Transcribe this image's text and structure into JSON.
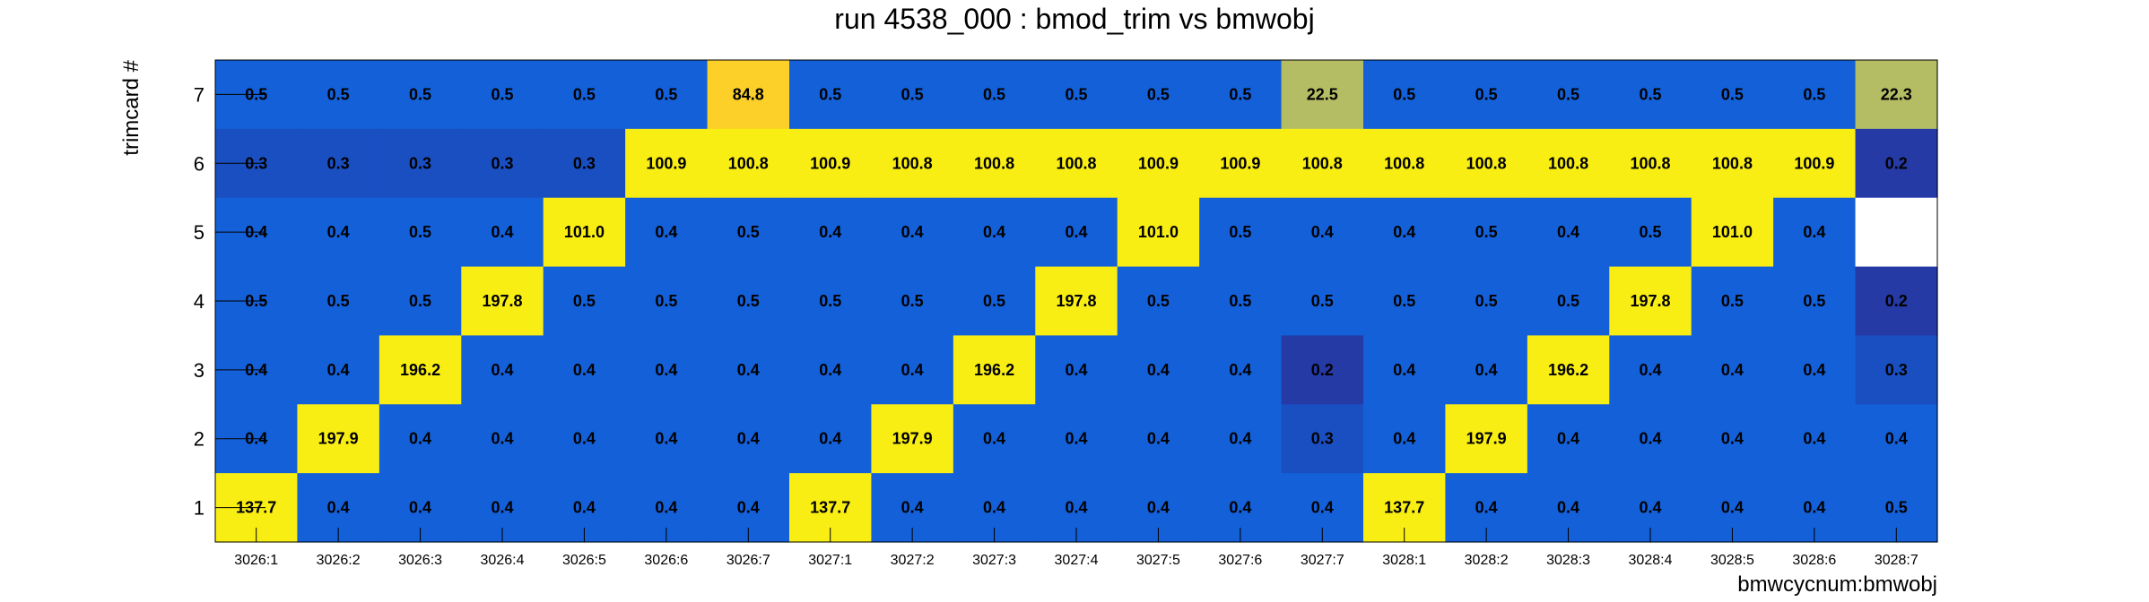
{
  "chart_data": {
    "type": "heatmap",
    "title": "run 4538_000 : bmod_trim vs bmwobj",
    "xlabel": "bmwcycnum:bmwobj",
    "ylabel": "trimcard #",
    "x": [
      "3026:1",
      "3026:2",
      "3026:3",
      "3026:4",
      "3026:5",
      "3026:6",
      "3026:7",
      "3027:1",
      "3027:2",
      "3027:3",
      "3027:4",
      "3027:5",
      "3027:6",
      "3027:7",
      "3028:1",
      "3028:2",
      "3028:3",
      "3028:4",
      "3028:5",
      "3028:6",
      "3028:7"
    ],
    "y": [
      "1",
      "2",
      "3",
      "4",
      "5",
      "6",
      "7"
    ],
    "cells": [
      {
        "y": "7",
        "values": [
          "0.5",
          "0.5",
          "0.5",
          "0.5",
          "0.5",
          "0.5",
          "84.8",
          "0.5",
          "0.5",
          "0.5",
          "0.5",
          "0.5",
          "0.5",
          "22.5",
          "0.5",
          "0.5",
          "0.5",
          "0.5",
          "0.5",
          "0.5",
          "22.3"
        ]
      },
      {
        "y": "6",
        "values": [
          "0.3",
          "0.3",
          "0.3",
          "0.3",
          "0.3",
          "100.9",
          "100.8",
          "100.9",
          "100.8",
          "100.8",
          "100.8",
          "100.9",
          "100.9",
          "100.8",
          "100.8",
          "100.8",
          "100.8",
          "100.8",
          "100.8",
          "100.9",
          "0.2"
        ]
      },
      {
        "y": "5",
        "values": [
          "0.4",
          "0.4",
          "0.5",
          "0.4",
          "101.0",
          "0.4",
          "0.5",
          "0.4",
          "0.4",
          "0.4",
          "0.4",
          "101.0",
          "0.5",
          "0.4",
          "0.4",
          "0.5",
          "0.4",
          "0.5",
          "101.0",
          "0.4",
          ""
        ]
      },
      {
        "y": "4",
        "values": [
          "0.5",
          "0.5",
          "0.5",
          "197.8",
          "0.5",
          "0.5",
          "0.5",
          "0.5",
          "0.5",
          "0.5",
          "197.8",
          "0.5",
          "0.5",
          "0.5",
          "0.5",
          "0.5",
          "0.5",
          "197.8",
          "0.5",
          "0.5",
          "0.2"
        ]
      },
      {
        "y": "3",
        "values": [
          "0.4",
          "0.4",
          "196.2",
          "0.4",
          "0.4",
          "0.4",
          "0.4",
          "0.4",
          "0.4",
          "196.2",
          "0.4",
          "0.4",
          "0.4",
          "0.2",
          "0.4",
          "0.4",
          "196.2",
          "0.4",
          "0.4",
          "0.4",
          "0.3"
        ]
      },
      {
        "y": "2",
        "values": [
          "0.4",
          "197.9",
          "0.4",
          "0.4",
          "0.4",
          "0.4",
          "0.4",
          "0.4",
          "197.9",
          "0.4",
          "0.4",
          "0.4",
          "0.4",
          "0.3",
          "0.4",
          "197.9",
          "0.4",
          "0.4",
          "0.4",
          "0.4",
          "0.4"
        ]
      },
      {
        "y": "1",
        "values": [
          "137.7",
          "0.4",
          "0.4",
          "0.4",
          "0.4",
          "0.4",
          "0.4",
          "137.7",
          "0.4",
          "0.4",
          "0.4",
          "0.4",
          "0.4",
          "0.4",
          "137.7",
          "0.4",
          "0.4",
          "0.4",
          "0.4",
          "0.4",
          "0.5"
        ]
      }
    ],
    "colors": {
      "high": "#f9ee14",
      "high_alt": "#f7f50f",
      "mid_orange": "#fcd028",
      "mid_olive": "#b4bd64",
      "low_blue": "#1460d8",
      "lower_blue": "#1a4fc2",
      "lowest_blue": "#253aa4",
      "empty": "#ffffff"
    }
  }
}
